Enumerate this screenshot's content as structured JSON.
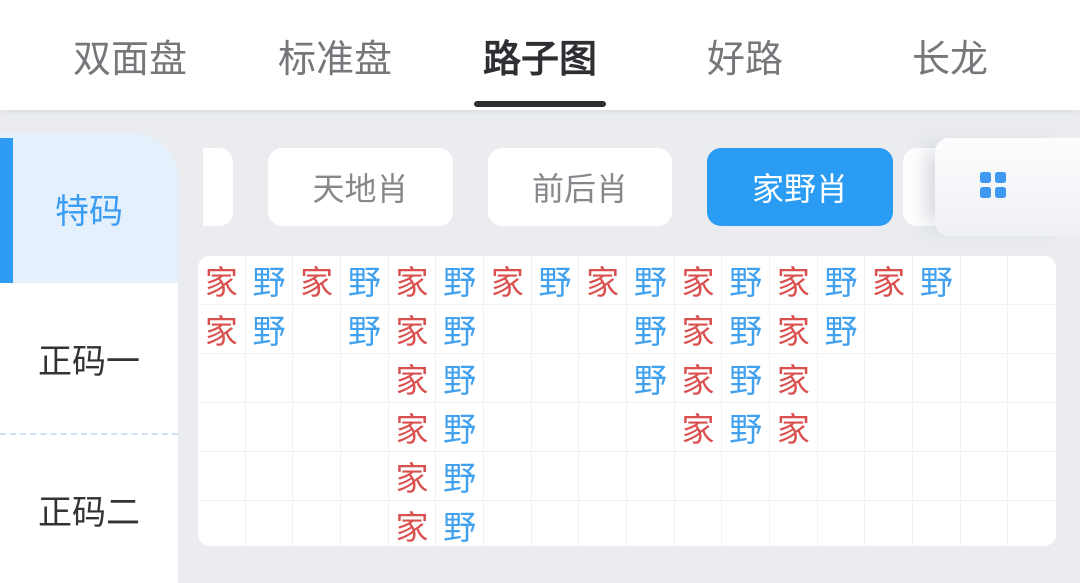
{
  "nav": {
    "tabs": [
      {
        "label": "双面盘",
        "active": false
      },
      {
        "label": "标准盘",
        "active": false
      },
      {
        "label": "路子图",
        "active": true
      },
      {
        "label": "好路",
        "active": false
      },
      {
        "label": "长龙",
        "active": false
      }
    ]
  },
  "sidebar": {
    "items": [
      {
        "label": "特码",
        "active": true
      },
      {
        "label": "正码一",
        "active": false
      },
      {
        "label": "正码二",
        "active": false
      }
    ]
  },
  "filters": {
    "buttons": [
      {
        "label": "天地肖",
        "active": false
      },
      {
        "label": "前后肖",
        "active": false
      },
      {
        "label": "家野肖",
        "active": true
      }
    ],
    "grid_view_icon": "grid-2x2-icon"
  },
  "road_map": {
    "columns": 18,
    "rows": 6,
    "symbols": {
      "home": {
        "char": "家",
        "color": "#d9504f"
      },
      "wild": {
        "char": "野",
        "color": "#41a1ee"
      }
    },
    "cells": [
      [
        "家",
        "野",
        "家",
        "野",
        "家",
        "野",
        "家",
        "野",
        "家",
        "野",
        "家",
        "野",
        "家",
        "野",
        "家",
        "野",
        "",
        ""
      ],
      [
        "家",
        "野",
        "",
        "野",
        "家",
        "野",
        "",
        "",
        "",
        "野",
        "家",
        "野",
        "家",
        "野",
        "",
        "",
        "",
        ""
      ],
      [
        "",
        "",
        "",
        "",
        "家",
        "野",
        "",
        "",
        "",
        "野",
        "家",
        "野",
        "家",
        "",
        "",
        "",
        "",
        ""
      ],
      [
        "",
        "",
        "",
        "",
        "家",
        "野",
        "",
        "",
        "",
        "",
        "家",
        "野",
        "家",
        "",
        "",
        "",
        "",
        ""
      ],
      [
        "",
        "",
        "",
        "",
        "家",
        "野",
        "",
        "",
        "",
        "",
        "",
        "",
        "",
        "",
        "",
        "",
        "",
        ""
      ],
      [
        "",
        "",
        "",
        "",
        "家",
        "野",
        "",
        "",
        "",
        "",
        "",
        "",
        "",
        "",
        "",
        "",
        "",
        ""
      ]
    ]
  },
  "colors": {
    "accent_blue": "#2b9cf4",
    "page_bg": "#eaecf0",
    "home_red": "#d9504f",
    "wild_blue": "#41a1ee",
    "active_tab": "#2f2f33",
    "inactive_tab": "#77777b",
    "selected_side_bg": "#e4f1fd"
  }
}
